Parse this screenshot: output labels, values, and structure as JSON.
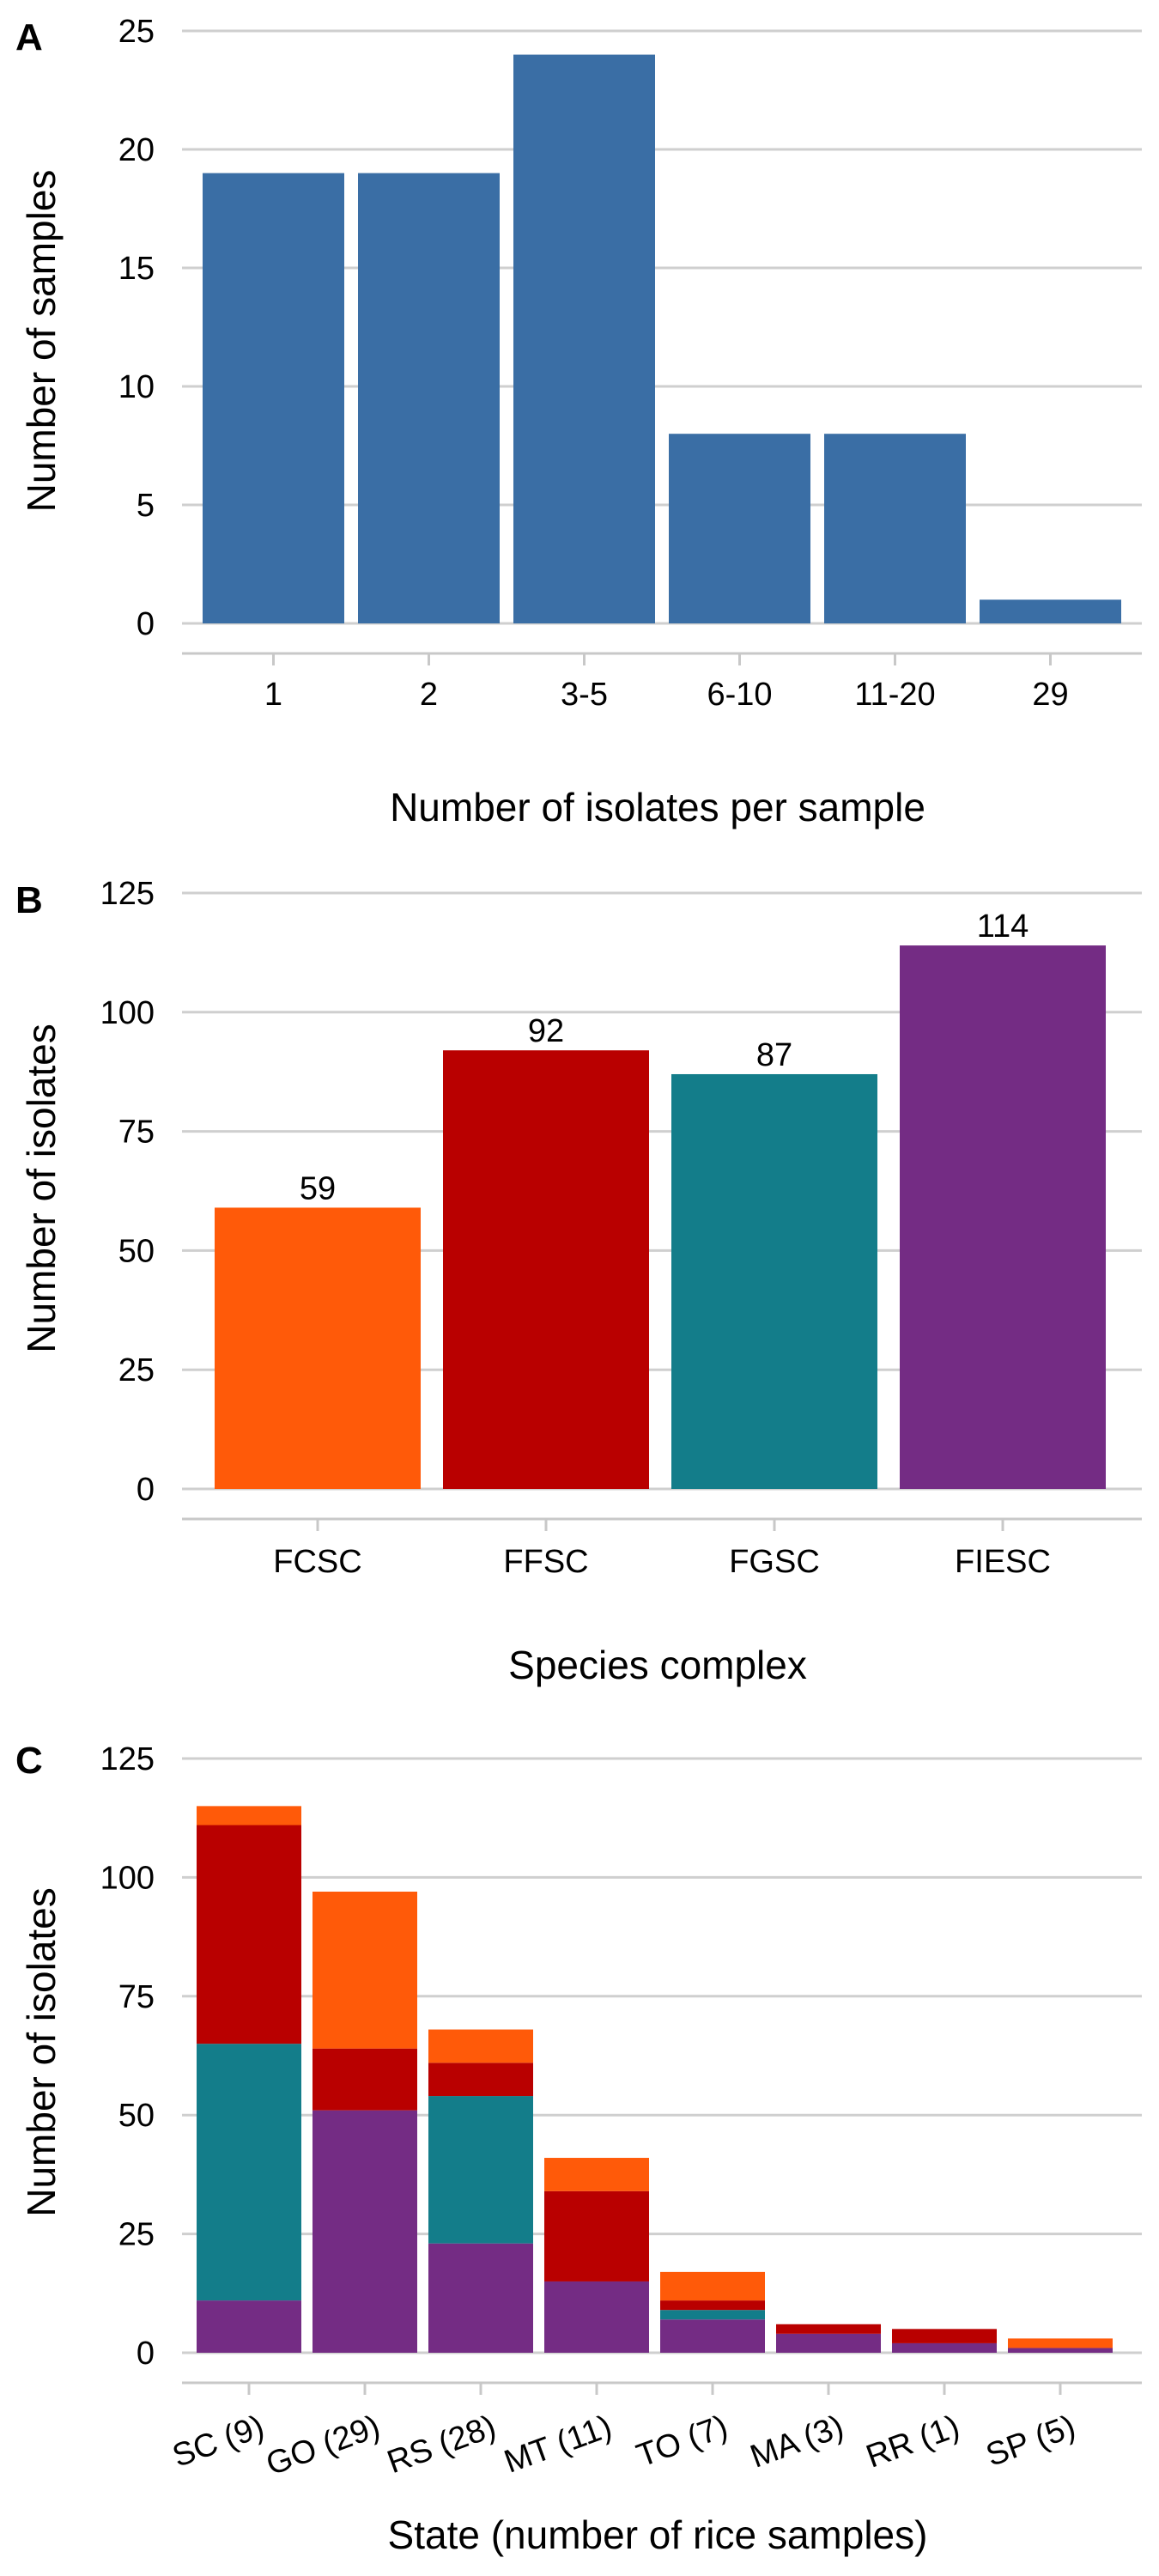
{
  "panels": [
    {
      "letter": "A",
      "chart_data": {
        "type": "bar",
        "categories": [
          "1",
          "2",
          "3-5",
          "6-10",
          "11-20",
          "29"
        ],
        "values": [
          19,
          19,
          24,
          8,
          8,
          1
        ],
        "xlabel": "Number of isolates per sample",
        "ylabel": "Number of samples",
        "ylim": [
          0,
          25
        ],
        "yticks": [
          0,
          5,
          10,
          15,
          20,
          25
        ],
        "grid": "horizontal",
        "color": "#3A6EA5"
      }
    },
    {
      "letter": "B",
      "chart_data": {
        "type": "bar",
        "categories": [
          "FCSC",
          "FFSC",
          "FGSC",
          "FIESC"
        ],
        "values": [
          59,
          92,
          87,
          114
        ],
        "data_labels": [
          "59",
          "92",
          "87",
          "114"
        ],
        "colors": [
          "#FF5A09",
          "#B90000",
          "#137D8A",
          "#742C84"
        ],
        "xlabel": "Species complex",
        "ylabel": "Number of isolates",
        "ylim": [
          0,
          125
        ],
        "yticks": [
          0,
          25,
          50,
          75,
          100,
          125
        ],
        "grid": "horizontal"
      }
    },
    {
      "letter": "C",
      "chart_data": {
        "type": "bar",
        "stacked": true,
        "categories": [
          "SC (9)",
          "GO (29)",
          "RS (28)",
          "MT (11)",
          "TO (7)",
          "MA (3)",
          "RR (1)",
          "SP (5)"
        ],
        "series": [
          {
            "values": [
              11,
              51,
              23,
              15,
              7,
              4,
              2,
              1
            ],
            "color": "#742C84"
          },
          {
            "values": [
              54,
              0,
              31,
              0,
              2,
              0,
              0,
              0
            ],
            "color": "#137D8A"
          },
          {
            "values": [
              46,
              13,
              7,
              19,
              2,
              2,
              3,
              0
            ],
            "color": "#B90000"
          },
          {
            "values": [
              4,
              33,
              7,
              7,
              6,
              0,
              0,
              2
            ],
            "color": "#FF5A09"
          }
        ],
        "xlabel": "State (number of rice samples)",
        "ylabel": "Number of isolates",
        "ylim": [
          0,
          125
        ],
        "yticks": [
          0,
          25,
          50,
          75,
          100,
          125
        ],
        "grid": "horizontal"
      }
    }
  ]
}
